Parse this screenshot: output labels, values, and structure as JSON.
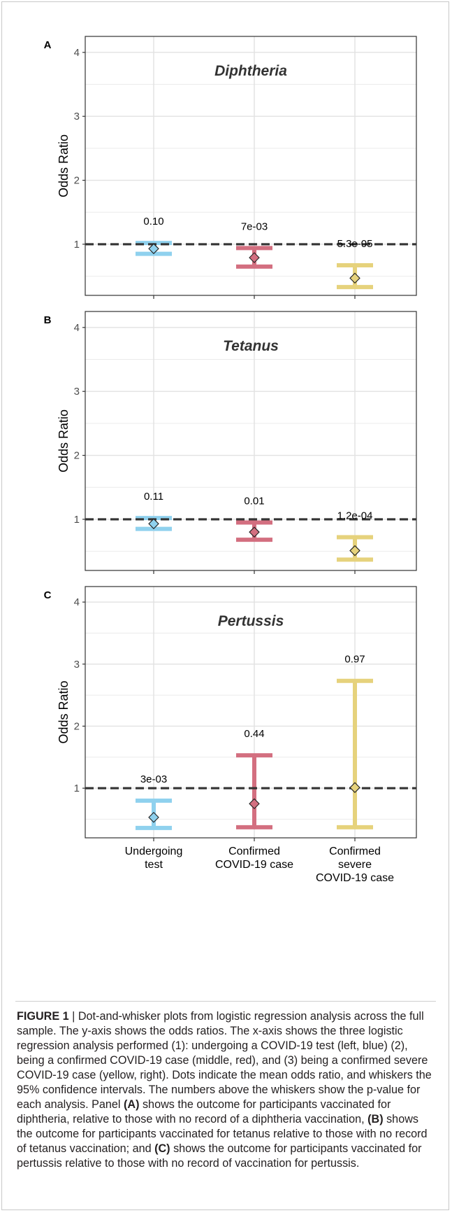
{
  "chart_data": [
    {
      "type": "dot-and-whisker",
      "panel": "A",
      "title": "Diphtheria",
      "ylabel": "Odds Ratio",
      "yticks": [
        1,
        2,
        3,
        4
      ],
      "ylim": [
        0.2,
        4.25
      ],
      "reference_line": 1,
      "categories": [
        "Undergoing test",
        "Confirmed COVID-19 case",
        "Confirmed severe COVID-19 case"
      ],
      "points": [
        {
          "category": "Undergoing test",
          "or": 0.93,
          "lo": 0.85,
          "hi": 1.02,
          "p_label": "0.10",
          "color": "#8fd1ee"
        },
        {
          "category": "Confirmed COVID-19 case",
          "or": 0.79,
          "lo": 0.65,
          "hi": 0.94,
          "p_label": "7e-03",
          "color": "#d36f80"
        },
        {
          "category": "Confirmed severe COVID-19 case",
          "or": 0.47,
          "lo": 0.33,
          "hi": 0.67,
          "p_label": "5.3e-05",
          "color": "#e6d27c"
        }
      ]
    },
    {
      "type": "dot-and-whisker",
      "panel": "B",
      "title": "Tetanus",
      "ylabel": "Odds Ratio",
      "yticks": [
        1,
        2,
        3,
        4
      ],
      "ylim": [
        0.2,
        4.25
      ],
      "reference_line": 1,
      "categories": [
        "Undergoing test",
        "Confirmed COVID-19 case",
        "Confirmed severe COVID-19 case"
      ],
      "points": [
        {
          "category": "Undergoing test",
          "or": 0.93,
          "lo": 0.85,
          "hi": 1.02,
          "p_label": "0.11",
          "color": "#8fd1ee"
        },
        {
          "category": "Confirmed COVID-19 case",
          "or": 0.8,
          "lo": 0.68,
          "hi": 0.95,
          "p_label": "0.01",
          "color": "#d36f80"
        },
        {
          "category": "Confirmed severe COVID-19 case",
          "or": 0.51,
          "lo": 0.37,
          "hi": 0.72,
          "p_label": "1.2e-04",
          "color": "#e6d27c"
        }
      ]
    },
    {
      "type": "dot-and-whisker",
      "panel": "C",
      "title": "Pertussis",
      "ylabel": "Odds Ratio",
      "yticks": [
        1,
        2,
        3,
        4
      ],
      "ylim": [
        0.2,
        4.25
      ],
      "reference_line": 1,
      "categories": [
        "Undergoing test",
        "Confirmed COVID-19 case",
        "Confirmed severe COVID-19 case"
      ],
      "points": [
        {
          "category": "Undergoing test",
          "or": 0.53,
          "lo": 0.36,
          "hi": 0.8,
          "p_label": "3e-03",
          "color": "#8fd1ee"
        },
        {
          "category": "Confirmed COVID-19 case",
          "or": 0.75,
          "lo": 0.37,
          "hi": 1.53,
          "p_label": "0.44",
          "color": "#d36f80"
        },
        {
          "category": "Confirmed severe COVID-19 case",
          "or": 1.01,
          "lo": 0.37,
          "hi": 2.73,
          "p_label": "0.97",
          "color": "#e6d27c"
        }
      ]
    }
  ],
  "x_axis_labels": [
    [
      "Undergoing",
      "test"
    ],
    [
      "Confirmed",
      "COVID-19 case"
    ],
    [
      "Confirmed",
      "severe",
      "COVID-19 case"
    ]
  ],
  "caption": {
    "figure_label": "FIGURE 1",
    "separator": " | ",
    "parts": [
      {
        "text": "Dot-and-whisker plots from logistic regression analysis across the full sample. The y-axis shows the odds ratios. The x-axis shows the three logistic regression analysis performed (1): undergoing a COVID-19 test (left, blue) (2), being a confirmed COVID-19 case (middle, red), and (3) being a confirmed severe COVID-19 case (yellow, right). Dots indicate the mean odds ratio, and whiskers the 95% confidence intervals. The numbers above the whiskers show the p-value for each analysis. Panel ",
        "bold": false
      },
      {
        "text": "(A)",
        "bold": true
      },
      {
        "text": " shows the outcome for participants vaccinated for diphtheria, relative to those with no record of a diphtheria vaccination, ",
        "bold": false
      },
      {
        "text": "(B)",
        "bold": true
      },
      {
        "text": " shows the outcome for participants vaccinated for tetanus relative to those with no record of tetanus vaccination; and ",
        "bold": false
      },
      {
        "text": "(C)",
        "bold": true
      },
      {
        "text": " shows the outcome for participants vaccinated for pertussis relative to those with no record of vaccination for pertussis.",
        "bold": false
      }
    ]
  },
  "colors": {
    "test": "#8fd1ee",
    "case": "#d36f80",
    "severe": "#e6d27c",
    "grid": "#ebebeb",
    "panel_border": "#333333",
    "reference_line": "#333333"
  }
}
